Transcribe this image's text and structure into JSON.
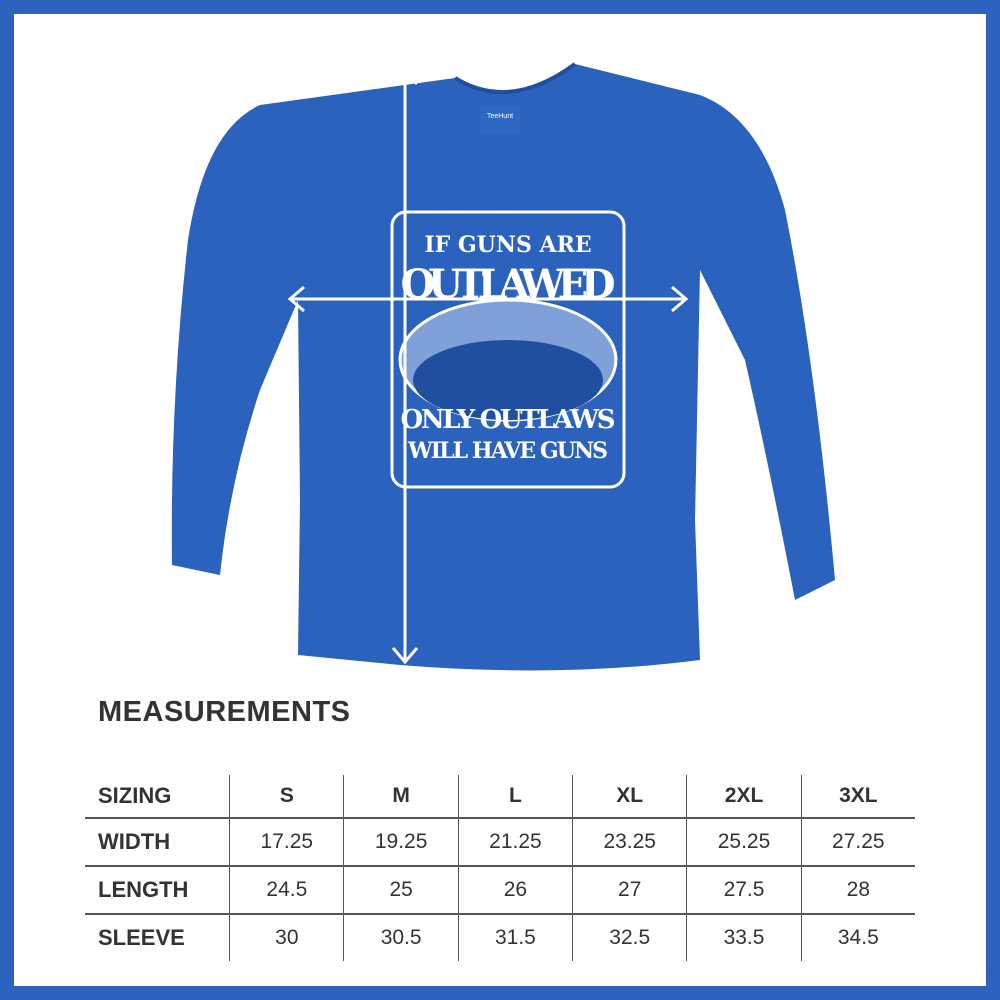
{
  "colors": {
    "frame": "#2d63bf",
    "shirt": "#2a62be",
    "text": "#333333"
  },
  "shirt": {
    "brand_tag": "TeeHunt",
    "print": {
      "line1": "IF GUNS ARE",
      "line2": "OUTLAWED",
      "line3": "ONLY OUTLAWS",
      "line4": "WILL HAVE GUNS"
    },
    "arrows": [
      "vertical-length-arrow",
      "horizontal-width-arrow"
    ]
  },
  "measurements": {
    "title": "MEASUREMENTS",
    "header": [
      "SIZING",
      "S",
      "M",
      "L",
      "XL",
      "2XL",
      "3XL"
    ],
    "rows": [
      [
        "WIDTH",
        "17.25",
        "19.25",
        "21.25",
        "23.25",
        "25.25",
        "27.25"
      ],
      [
        "LENGTH",
        "24.5",
        "25",
        "26",
        "27",
        "27.5",
        "28"
      ],
      [
        "SLEEVE",
        "30",
        "30.5",
        "31.5",
        "32.5",
        "33.5",
        "34.5"
      ]
    ]
  }
}
